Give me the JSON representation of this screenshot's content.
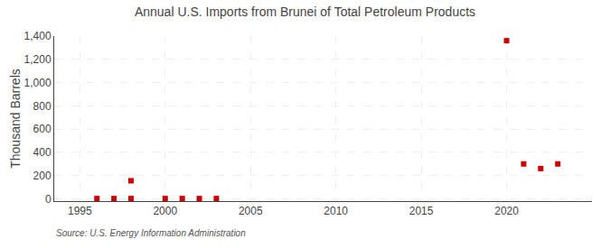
{
  "chart_data": {
    "type": "scatter",
    "title": "Annual U.S. Imports from Brunei of Total Petroleum Products",
    "ylabel": "Thousand Barrels",
    "annotations": [
      "Source: U.S. Energy Information Administration"
    ],
    "x": [
      1996,
      1997,
      1998,
      1998,
      2000,
      2001,
      2002,
      2003,
      2020,
      2021,
      2022,
      2023
    ],
    "values": [
      2,
      2,
      2,
      155,
      2,
      2,
      2,
      2,
      1360,
      300,
      260,
      300
    ],
    "color": "#cc0000",
    "marker": "square",
    "xlim": [
      1993.5,
      2025
    ],
    "ylim": [
      -20,
      1400
    ],
    "xticks": [
      1995,
      2000,
      2005,
      2010,
      2015,
      2020
    ],
    "yticks": [
      0,
      200,
      400,
      600,
      800,
      {
        "value": 1000,
        "label": "1,000"
      },
      {
        "value": 1200,
        "label": "1,200"
      },
      {
        "value": 1400,
        "label": "1,400"
      }
    ],
    "grid": true
  }
}
